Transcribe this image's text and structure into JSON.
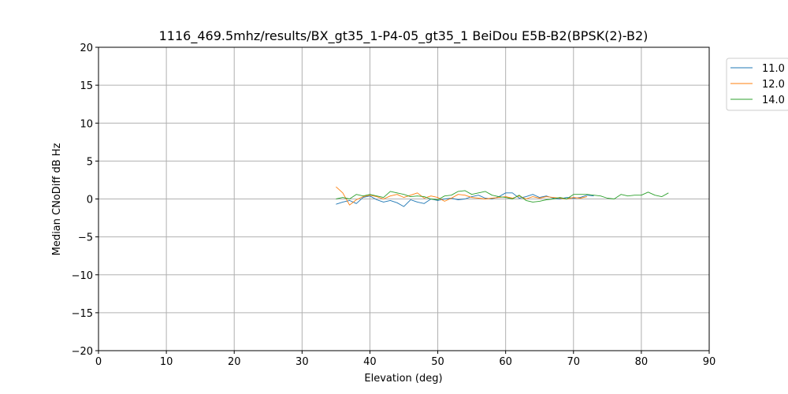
{
  "chart_data": {
    "type": "line",
    "title": "1116_469.5mhz/results/BX_gt35_1-P4-05_gt35_1 BeiDou E5B-B2(BPSK(2)-B2)",
    "xlabel": "Elevation (deg)",
    "ylabel": "Median CNoDiff dB Hz",
    "xlim": [
      0,
      90
    ],
    "ylim": [
      -20,
      20
    ],
    "xticks": [
      "0",
      "10",
      "20",
      "30",
      "40",
      "50",
      "60",
      "70",
      "80",
      "90"
    ],
    "yticks": [
      "20",
      "15",
      "10",
      "5",
      "0",
      "−5",
      "−10",
      "−15",
      "−20"
    ],
    "grid": true,
    "legend_position": "outside top-right",
    "series": [
      {
        "name": "11.0",
        "color": "#1f77b4",
        "x": [
          35,
          36,
          37,
          38,
          39,
          40,
          41,
          42,
          43,
          44,
          45,
          46,
          47,
          48,
          49,
          50,
          51,
          52,
          53,
          54,
          55,
          56,
          57,
          58,
          59,
          60,
          61,
          62,
          63,
          64,
          65,
          66,
          67,
          68,
          69,
          70,
          71,
          72,
          73
        ],
        "y": [
          -0.7,
          -0.4,
          -0.2,
          -0.6,
          0.2,
          0.4,
          -0.1,
          -0.4,
          -0.2,
          -0.5,
          -1.0,
          -0.1,
          -0.4,
          -0.6,
          0.0,
          -0.2,
          0.0,
          0.1,
          -0.1,
          0.0,
          0.3,
          0.5,
          0.1,
          0.0,
          0.3,
          0.8,
          0.8,
          0.1,
          0.3,
          0.6,
          0.2,
          0.4,
          0.1,
          0.0,
          0.2,
          0.1,
          0.2,
          0.5,
          0.4
        ]
      },
      {
        "name": "12.0",
        "color": "#ff7f0e",
        "x": [
          35,
          36,
          37,
          38,
          39,
          40,
          41,
          42,
          43,
          44,
          45,
          46,
          47,
          48,
          49,
          50,
          51,
          52,
          53,
          54,
          55,
          56,
          57,
          58,
          59,
          60,
          61,
          62,
          63,
          64,
          65,
          66,
          67,
          68,
          69,
          70,
          71,
          72
        ],
        "y": [
          1.6,
          0.8,
          -0.8,
          -0.1,
          0.3,
          0.5,
          0.3,
          0.0,
          0.4,
          0.6,
          0.2,
          0.5,
          0.8,
          0.1,
          0.4,
          0.2,
          -0.3,
          0.1,
          0.6,
          0.5,
          0.2,
          0.1,
          0.0,
          0.1,
          0.2,
          0.3,
          0.1,
          0.4,
          0.0,
          0.3,
          0.1,
          0.3,
          0.2,
          0.1,
          0.0,
          0.2,
          0.1,
          0.3
        ]
      },
      {
        "name": "14.0",
        "color": "#2ca02c",
        "x": [
          35,
          36,
          37,
          38,
          39,
          40,
          41,
          42,
          43,
          44,
          45,
          46,
          47,
          48,
          49,
          50,
          51,
          52,
          53,
          54,
          55,
          56,
          57,
          58,
          59,
          60,
          61,
          62,
          63,
          64,
          65,
          66,
          67,
          68,
          69,
          70,
          71,
          72,
          73,
          74,
          75,
          76,
          77,
          78,
          79,
          80,
          81,
          82,
          83,
          84
        ],
        "y": [
          0.0,
          0.2,
          0.0,
          0.6,
          0.4,
          0.6,
          0.4,
          0.2,
          1.0,
          0.8,
          0.6,
          0.3,
          0.4,
          0.3,
          0.0,
          -0.1,
          0.4,
          0.5,
          1.0,
          1.1,
          0.6,
          0.8,
          1.0,
          0.5,
          0.3,
          0.2,
          0.0,
          0.5,
          -0.2,
          -0.4,
          -0.3,
          -0.1,
          0.0,
          0.2,
          0.0,
          0.6,
          0.6,
          0.6,
          0.5,
          0.4,
          0.1,
          0.0,
          0.6,
          0.4,
          0.5,
          0.5,
          0.9,
          0.5,
          0.3,
          0.8
        ]
      }
    ]
  }
}
